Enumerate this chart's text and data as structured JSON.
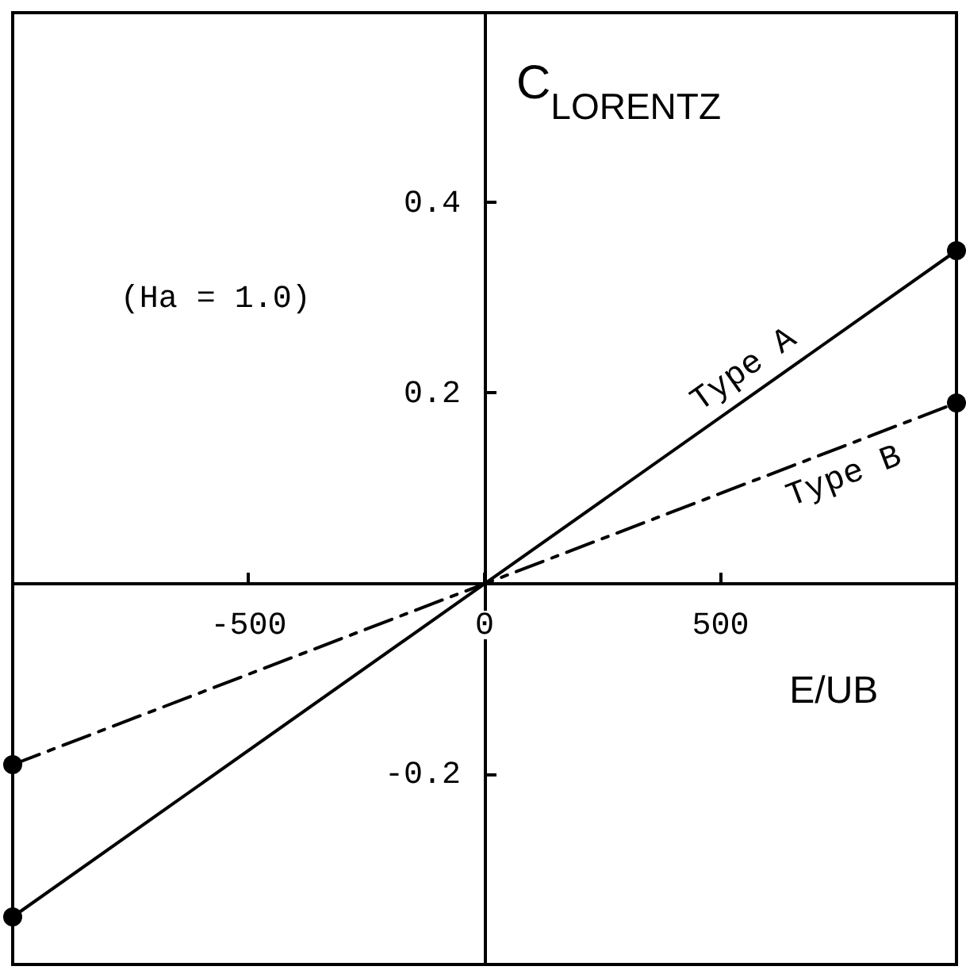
{
  "chart_data": {
    "type": "line",
    "xlabel": "E/UB",
    "ylabel": "C$_{LORENTZ}$",
    "annotations": [
      "(Ha = 1.0)"
    ],
    "xlim": [
      -1000,
      1000
    ],
    "ylim": [
      -0.4,
      0.6
    ],
    "xticks": [
      -500,
      0,
      500
    ],
    "yticks": [
      -0.2,
      0.2,
      0.4
    ],
    "grid": false,
    "legend": false,
    "marker": "circle",
    "x": [
      -1000,
      1000
    ],
    "series": [
      {
        "name": "Type A",
        "color": "#000000",
        "values": [
          -0.35,
          0.35
        ],
        "line_style": "solid"
      },
      {
        "name": "Type B",
        "color": "#000000",
        "values": [
          -0.19,
          0.19
        ],
        "line_style": "dashed"
      }
    ]
  }
}
